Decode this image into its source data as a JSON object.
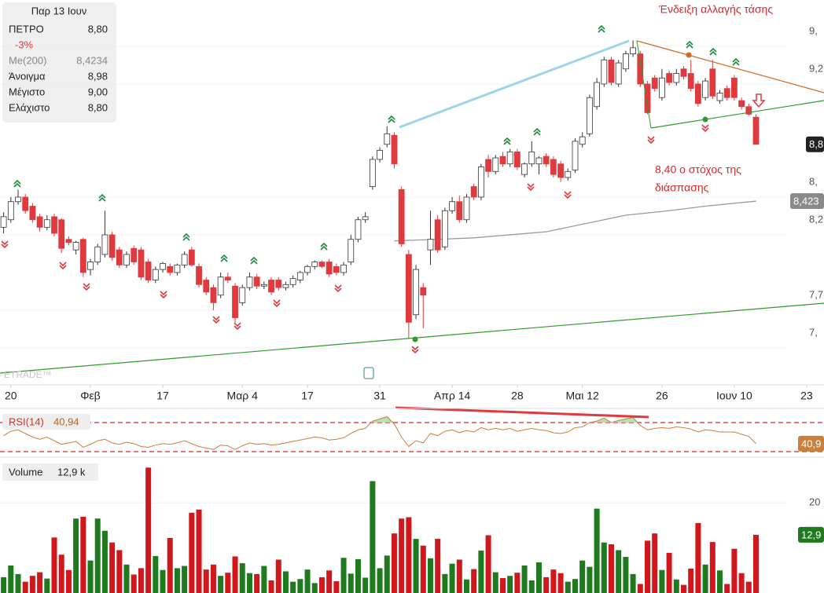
{
  "info": {
    "date": "Παρ 13 Ιουν",
    "symbol": "ΠΕΤΡΟ",
    "last": "8,80",
    "change": "-3%",
    "ma_label": "Me(200)",
    "ma_value": "8,4234",
    "rows": [
      [
        "Άνοιγμα",
        "8,98"
      ],
      [
        "Μέγιστο",
        "9,00"
      ],
      [
        "Ελάχιστο",
        "8,80"
      ]
    ]
  },
  "watermark": "ETRADE™",
  "chart_data": [
    {
      "type": "candlestick",
      "annotations": [
        "Ένδειξη αλλαγής τάσης",
        "8,40 ο στόχος της",
        "διάσπασης"
      ],
      "xlim": [
        -0.5,
        113.4
      ],
      "xticks": [
        {
          "value": 1,
          "label": "20"
        },
        {
          "value": 12,
          "label": "Φεβ"
        },
        {
          "value": 22,
          "label": "17"
        },
        {
          "value": 33,
          "label": "Μαρ 4"
        },
        {
          "value": 42,
          "label": "17"
        },
        {
          "value": 52,
          "label": "31"
        },
        {
          "value": 62,
          "label": "Απρ 14"
        },
        {
          "value": 71,
          "label": "28"
        },
        {
          "value": 80,
          "label": "Μαι 12"
        },
        {
          "value": 91,
          "label": "26"
        },
        {
          "value": 101,
          "label": "Ιουν 10"
        },
        {
          "value": 111,
          "label": "23"
        }
      ],
      "ylim": [
        7.205,
        9.757
      ],
      "yticks": [
        {
          "value": 9.45,
          "label": "9,"
        },
        {
          "value": 9.2,
          "label": "9,2"
        },
        {
          "value": 8.45,
          "label": "8,"
        },
        {
          "value": 8.2,
          "label": "8,2"
        },
        {
          "value": 7.7,
          "label": "7,7"
        },
        {
          "value": 7.45,
          "label": "7,"
        }
      ],
      "grid": true,
      "up_color": "#ffffff",
      "down_color": "#e0393e",
      "price_label": "8,8",
      "ma_box_label": "8,423",
      "ohlc": [
        [
          8.25,
          8.35,
          8.21,
          8.32
        ],
        [
          8.3,
          8.45,
          8.28,
          8.42
        ],
        [
          8.42,
          8.5,
          8.4,
          8.45
        ],
        [
          8.45,
          8.47,
          8.34,
          8.36
        ],
        [
          8.39,
          8.41,
          8.28,
          8.3
        ],
        [
          8.32,
          8.34,
          8.22,
          8.25
        ],
        [
          8.25,
          8.33,
          8.23,
          8.3
        ],
        [
          8.32,
          8.34,
          8.19,
          8.21
        ],
        [
          8.3,
          8.31,
          8.08,
          8.11
        ],
        [
          8.17,
          8.19,
          8.13,
          8.15
        ],
        [
          8.1,
          8.16,
          8.07,
          8.15
        ],
        [
          8.17,
          8.18,
          7.92,
          7.95
        ],
        [
          7.97,
          8.04,
          7.93,
          8.02
        ],
        [
          8.02,
          8.14,
          8.0,
          8.12
        ],
        [
          8.07,
          8.36,
          8.05,
          8.2
        ],
        [
          8.2,
          8.22,
          8.03,
          8.05
        ],
        [
          8.1,
          8.12,
          7.98,
          8.0
        ],
        [
          8.0,
          8.09,
          7.98,
          8.07
        ],
        [
          8.11,
          8.13,
          8.0,
          8.02
        ],
        [
          8.1,
          8.12,
          7.9,
          7.92
        ],
        [
          8.02,
          8.04,
          7.88,
          7.9
        ],
        [
          7.9,
          7.99,
          7.88,
          7.97
        ],
        [
          7.97,
          8.02,
          7.95,
          8.01
        ],
        [
          7.99,
          8.01,
          7.93,
          7.95
        ],
        [
          7.95,
          8.01,
          7.93,
          8.0
        ],
        [
          8.0,
          8.09,
          7.98,
          8.07
        ],
        [
          8.1,
          8.12,
          7.99,
          8.0
        ],
        [
          7.99,
          8.01,
          7.85,
          7.87
        ],
        [
          7.9,
          7.92,
          7.8,
          7.82
        ],
        [
          7.85,
          7.87,
          7.7,
          7.75
        ],
        [
          7.8,
          7.95,
          7.78,
          7.92
        ],
        [
          7.92,
          7.95,
          7.88,
          7.9
        ],
        [
          7.86,
          7.88,
          7.62,
          7.65
        ],
        [
          7.75,
          7.87,
          7.73,
          7.85
        ],
        [
          7.85,
          7.95,
          7.83,
          7.92
        ],
        [
          7.92,
          7.94,
          7.84,
          7.86
        ],
        [
          7.86,
          7.89,
          7.84,
          7.87
        ],
        [
          7.9,
          7.92,
          7.8,
          7.82
        ],
        [
          7.9,
          7.92,
          7.83,
          7.85
        ],
        [
          7.85,
          7.89,
          7.83,
          7.87
        ],
        [
          7.87,
          7.93,
          7.85,
          7.91
        ],
        [
          7.9,
          7.96,
          7.88,
          7.95
        ],
        [
          7.95,
          8.0,
          7.93,
          7.99
        ],
        [
          7.99,
          8.03,
          7.97,
          8.02
        ],
        [
          8.02,
          8.03,
          7.98,
          7.99
        ],
        [
          8.02,
          8.04,
          7.92,
          7.94
        ],
        [
          7.99,
          8.01,
          7.93,
          7.95
        ],
        [
          7.95,
          8.02,
          7.93,
          8.0
        ],
        [
          8.02,
          8.2,
          8.0,
          8.17
        ],
        [
          8.17,
          8.32,
          8.15,
          8.3
        ],
        [
          8.3,
          8.35,
          8.28,
          8.32
        ],
        [
          8.52,
          8.72,
          8.5,
          8.7
        ],
        [
          8.7,
          8.78,
          8.68,
          8.76
        ],
        [
          8.8,
          8.92,
          8.78,
          8.87
        ],
        [
          8.86,
          8.88,
          8.64,
          8.67
        ],
        [
          8.5,
          8.52,
          8.12,
          8.14
        ],
        [
          8.07,
          8.1,
          7.51,
          7.62
        ],
        [
          7.67,
          8.0,
          7.64,
          7.97
        ],
        [
          7.85,
          7.88,
          7.58,
          7.8
        ],
        [
          8.1,
          8.36,
          8.0,
          8.17
        ],
        [
          8.3,
          8.33,
          8.08,
          8.1
        ],
        [
          8.12,
          8.38,
          8.1,
          8.36
        ],
        [
          8.36,
          8.45,
          8.34,
          8.42
        ],
        [
          8.42,
          8.46,
          8.28,
          8.3
        ],
        [
          8.3,
          8.47,
          8.28,
          8.45
        ],
        [
          8.52,
          8.54,
          8.43,
          8.45
        ],
        [
          8.45,
          8.67,
          8.43,
          8.65
        ],
        [
          8.7,
          8.73,
          8.58,
          8.62
        ],
        [
          8.62,
          8.73,
          8.6,
          8.71
        ],
        [
          8.72,
          8.75,
          8.65,
          8.67
        ],
        [
          8.67,
          8.77,
          8.65,
          8.75
        ],
        [
          8.75,
          8.77,
          8.63,
          8.65
        ],
        [
          8.6,
          8.68,
          8.58,
          8.67
        ],
        [
          8.67,
          8.82,
          8.65,
          8.75
        ],
        [
          8.67,
          8.72,
          8.6,
          8.71
        ],
        [
          8.72,
          8.74,
          8.65,
          8.67
        ],
        [
          8.7,
          8.72,
          8.58,
          8.6
        ],
        [
          8.67,
          8.69,
          8.55,
          8.58
        ],
        [
          8.58,
          8.64,
          8.56,
          8.62
        ],
        [
          8.63,
          8.84,
          8.61,
          8.82
        ],
        [
          8.8,
          8.88,
          8.78,
          8.85
        ],
        [
          8.87,
          9.13,
          8.85,
          9.11
        ],
        [
          9.05,
          9.24,
          9.03,
          9.21
        ],
        [
          9.2,
          9.38,
          9.18,
          9.36
        ],
        [
          9.36,
          9.38,
          9.19,
          9.21
        ],
        [
          9.2,
          9.36,
          9.18,
          9.34
        ],
        [
          9.3,
          9.42,
          9.28,
          9.4
        ],
        [
          9.4,
          9.49,
          9.38,
          9.44
        ],
        [
          9.4,
          9.42,
          9.18,
          9.2
        ],
        [
          9.2,
          9.22,
          9.0,
          9.01
        ],
        [
          9.24,
          9.26,
          9.15,
          9.17
        ],
        [
          9.11,
          9.3,
          9.09,
          9.24
        ],
        [
          9.27,
          9.29,
          9.19,
          9.21
        ],
        [
          9.21,
          9.3,
          9.19,
          9.27
        ],
        [
          9.3,
          9.32,
          9.23,
          9.25
        ],
        [
          9.27,
          9.36,
          9.15,
          9.17
        ],
        [
          9.2,
          9.22,
          9.05,
          9.07
        ],
        [
          9.11,
          9.24,
          9.09,
          9.22
        ],
        [
          9.3,
          9.36,
          9.1,
          9.12
        ],
        [
          9.09,
          9.16,
          9.07,
          9.14
        ],
        [
          9.17,
          9.19,
          9.09,
          9.11
        ],
        [
          9.24,
          9.26,
          9.09,
          9.11
        ],
        [
          9.09,
          9.11,
          9.03,
          9.05
        ],
        [
          9.05,
          9.07,
          8.99,
          9.0
        ],
        [
          8.98,
          9.0,
          8.8,
          8.8
        ]
      ],
      "series": [
        {
          "name": "Me(200)",
          "color": "#9a9a9a",
          "x": [
            54,
            60,
            65,
            70,
            75,
            80,
            86,
            92,
            97,
            104
          ],
          "values": [
            8.16,
            8.17,
            8.18,
            8.2,
            8.22,
            8.27,
            8.33,
            8.36,
            8.39,
            8.4234
          ]
        }
      ]
    },
    {
      "type": "line",
      "name": "RSI(14)",
      "value_label": "40,94",
      "box_label": "40,9",
      "color": "#c8803a",
      "xlim": [
        -0.5,
        113.4
      ],
      "ylim": [
        24.6,
        86.2
      ],
      "levels": [
        70,
        30
      ],
      "level_color": "#d6282d",
      "fill_color": "#a8d8a0",
      "values": [
        52,
        58,
        60,
        55,
        50,
        47,
        50,
        45,
        40,
        42,
        44,
        36,
        40,
        45,
        47,
        42,
        40,
        43,
        41,
        37,
        36,
        39,
        41,
        40,
        42,
        45,
        41,
        37,
        35,
        33,
        39,
        38,
        33,
        38,
        42,
        40,
        41,
        39,
        40,
        42,
        44,
        46,
        48,
        50,
        49,
        46,
        47,
        49,
        55,
        60,
        62,
        72,
        75,
        78,
        68,
        50,
        37,
        45,
        42,
        55,
        52,
        58,
        60,
        56,
        59,
        57,
        63,
        60,
        62,
        60,
        62,
        58,
        60,
        62,
        60,
        59,
        56,
        55,
        57,
        63,
        64,
        70,
        72,
        76,
        70,
        73,
        75,
        77,
        66,
        60,
        62,
        63,
        62,
        64,
        63,
        61,
        57,
        60,
        59,
        57,
        57,
        57,
        54,
        51,
        40.94
      ]
    },
    {
      "type": "bar",
      "name": "Volume",
      "value_label": "12,9 k",
      "box_label": "12,9",
      "xlim": [
        -0.5,
        113.4
      ],
      "ylim": [
        0,
        29.6
      ],
      "yticks": [
        20
      ],
      "up_color": "#1f7a1f",
      "down_color": "#d0171c",
      "values": [
        3.5,
        6.1,
        4.2,
        2.5,
        3.8,
        4.6,
        3.2,
        12.3,
        8.5,
        5.1,
        16.5,
        16.9,
        7.2,
        16.5,
        13.8,
        11.2,
        9.5,
        6.3,
        4.1,
        5.5,
        27.8,
        8.2,
        5.1,
        12.2,
        5.5,
        6.0,
        17.8,
        18.5,
        5.2,
        6.3,
        3.8,
        4.5,
        8.1,
        6.6,
        4.4,
        4.2,
        6.0,
        2.8,
        7.4,
        4.8,
        2.5,
        3.1,
        5.2,
        2.2,
        3.5,
        5.0,
        2.6,
        7.8,
        4.3,
        7.5,
        3.4,
        24.8,
        5.5,
        8.3,
        13.2,
        16.5,
        16.8,
        12.0,
        10.5,
        7.7,
        12.0,
        4.2,
        6.5,
        7.4,
        3.0,
        5.3,
        9.4,
        12.8,
        4.6,
        3.3,
        3.8,
        4.5,
        6.1,
        2.8,
        6.8,
        3.5,
        5.2,
        4.4,
        2.5,
        3.1,
        7.2,
        5.8,
        18.7,
        11.2,
        10.8,
        9.5,
        8.0,
        4.2,
        2.0,
        11.6,
        13.2,
        5.1,
        8.9,
        3.0,
        1.8,
        5.4,
        15.5,
        6.3,
        11.3,
        5.0,
        2.0,
        9.8,
        4.4,
        2.5,
        12.9
      ]
    }
  ]
}
